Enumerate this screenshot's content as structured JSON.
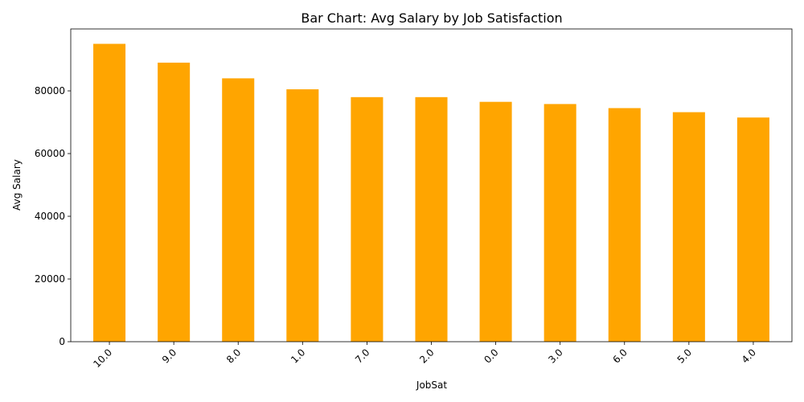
{
  "chart_data": {
    "type": "bar",
    "title": "Bar Chart: Avg Salary by Job Satisfaction",
    "xlabel": "JobSat",
    "ylabel": "Avg Salary",
    "categories": [
      "10.0",
      "9.0",
      "8.0",
      "1.0",
      "7.0",
      "2.0",
      "0.0",
      "3.0",
      "6.0",
      "5.0",
      "4.0"
    ],
    "values": [
      95000,
      89000,
      84000,
      80500,
      78000,
      78000,
      76500,
      75800,
      74500,
      73200,
      71500
    ],
    "ylim": [
      0,
      99750
    ],
    "yticks": [
      0,
      20000,
      40000,
      60000,
      80000
    ],
    "ytick_labels": [
      "0",
      "20000",
      "40000",
      "60000",
      "80000"
    ],
    "bar_color": "#FFA500",
    "grid": false,
    "xtick_rotation": 45
  }
}
